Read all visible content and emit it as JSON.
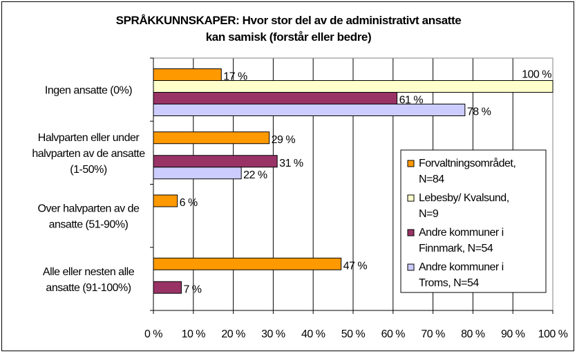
{
  "chart_data": {
    "type": "bar",
    "orientation": "horizontal",
    "title": "SPRÅKKUNNSKAPER: Hvor stor del av de administrativt ansatte kan samisk (forstår eller bedre)",
    "title_lines": [
      "SPRÅKKUNNSKAPER: Hvor stor del av de administrativt ansatte",
      "kan samisk (forstår eller bedre)"
    ],
    "xlabel": "",
    "ylabel": "",
    "xlim": [
      0,
      100
    ],
    "x_ticks": [
      "0 %",
      "10 %",
      "20 %",
      "30 %",
      "40 %",
      "50 %",
      "60 %",
      "70 %",
      "80 %",
      "90 %",
      "100 %"
    ],
    "grid": true,
    "legend_position": "right",
    "categories": [
      {
        "label_lines": [
          "Ingen ansatte (0%)"
        ]
      },
      {
        "label_lines": [
          "Halvparten eller under",
          "halvparten av de ansatte",
          "(1-50%)"
        ]
      },
      {
        "label_lines": [
          "Over halvparten av de",
          "ansatte (51-90%)"
        ]
      },
      {
        "label_lines": [
          "Alle eller nesten alle",
          "ansatte (91-100%)"
        ]
      }
    ],
    "series": [
      {
        "name_lines": [
          "Forvaltningsområdet,",
          "N=84"
        ],
        "color": "#FF9900",
        "values": [
          17,
          29,
          6,
          47
        ],
        "labels": [
          "17 %",
          "29 %",
          "6 %",
          "47 %"
        ]
      },
      {
        "name_lines": [
          "Lebesby/ Kvalsund,",
          "N=9"
        ],
        "color": "#FFFFCC",
        "values": [
          100,
          null,
          null,
          null
        ],
        "labels": [
          "100 %",
          "",
          "",
          ""
        ]
      },
      {
        "name_lines": [
          "Andre kommuner i",
          "Finnmark, N=54"
        ],
        "color": "#993366",
        "values": [
          61,
          31,
          null,
          7
        ],
        "labels": [
          "61 %",
          "31 %",
          "",
          "7 %"
        ]
      },
      {
        "name_lines": [
          "Andre kommuner i",
          "Troms, N=54"
        ],
        "color": "#CCCCFF",
        "values": [
          78,
          22,
          null,
          null
        ],
        "labels": [
          "78 %",
          "22 %",
          "",
          ""
        ]
      }
    ]
  }
}
